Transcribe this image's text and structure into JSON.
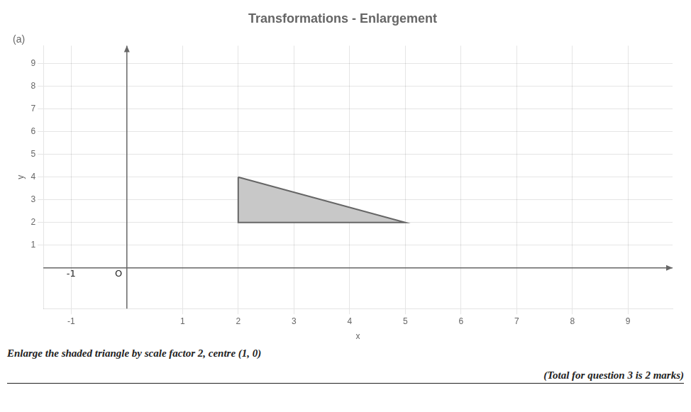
{
  "chart_data": {
    "type": "polygon",
    "title": "Transformations - Enlargement",
    "subtitle": "(a)",
    "xlabel": "x",
    "ylabel": "y",
    "x": [
      2,
      2,
      5
    ],
    "values": [
      4,
      2,
      2
    ],
    "color": "#c8c8c8",
    "xlim": [
      -1.5,
      9.8
    ],
    "ylim": [
      -1.8,
      9.8
    ],
    "xticks": [
      -1,
      1,
      2,
      3,
      4,
      5,
      6,
      7,
      8,
      9
    ],
    "yticks": [
      1,
      2,
      3,
      4,
      5,
      6,
      7,
      8,
      9
    ],
    "grid": true,
    "annotations": [
      {
        "text": "O",
        "x": -0.15,
        "y": -0.28
      },
      {
        "text": "-1",
        "x": -1,
        "y": -0.28
      },
      {
        "text": "Enlarge the shaded triangle by scale factor 2, centre (1, 0)"
      },
      {
        "text": "(Total for question 3 is 2 marks)"
      }
    ]
  }
}
